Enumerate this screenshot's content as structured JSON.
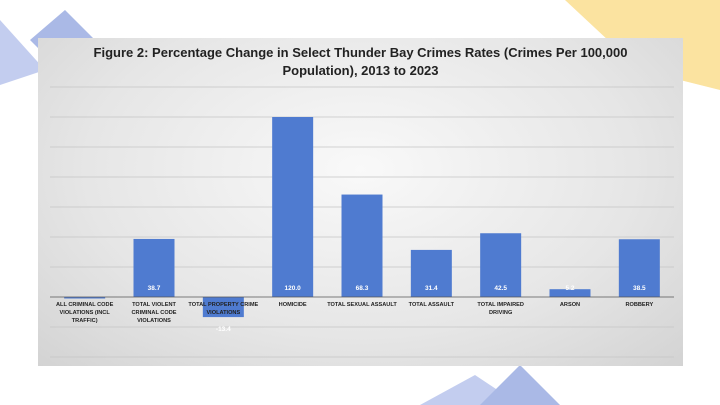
{
  "chart_data": {
    "type": "bar",
    "title_line1": "Figure 2: Percentage Change in Select Thunder Bay Crimes Rates (Crimes Per 100,000",
    "title_line2": "Population), 2013 to 2023",
    "categories": [
      [
        "ALL CRIMINAL CODE",
        "VIOLATIONS (INCL",
        "TRAFFIC)"
      ],
      [
        "TOTAL VIOLENT",
        "CRIMINAL CODE",
        "VIOLATIONS"
      ],
      [
        "TOTAL PROPERTY CRIME",
        "VIOLATIONS"
      ],
      [
        "HOMICIDE"
      ],
      [
        "TOTAL SEXUAL ASSAULT"
      ],
      [
        "TOTAL ASSAULT"
      ],
      [
        "TOTAL IMPAIRED",
        "DRIVING"
      ],
      [
        "ARSON"
      ],
      [
        "ROBBERY"
      ]
    ],
    "values": [
      -1.0,
      38.7,
      -13.4,
      120.0,
      68.3,
      31.4,
      42.5,
      5.2,
      38.5
    ],
    "value_labels": [
      "",
      "38.7",
      "-13.4",
      "120.0",
      "68.3",
      "31.4",
      "42.5",
      "5.2",
      "38.5"
    ],
    "ylim": [
      -40,
      140
    ],
    "gridline_step": 20,
    "xlabel": "",
    "ylabel": "",
    "legend": "none",
    "bar_color": "#4f7bd0"
  },
  "colors": {
    "deco_blue": "#aab9e6",
    "deco_yellow": "#f8dc8a"
  }
}
